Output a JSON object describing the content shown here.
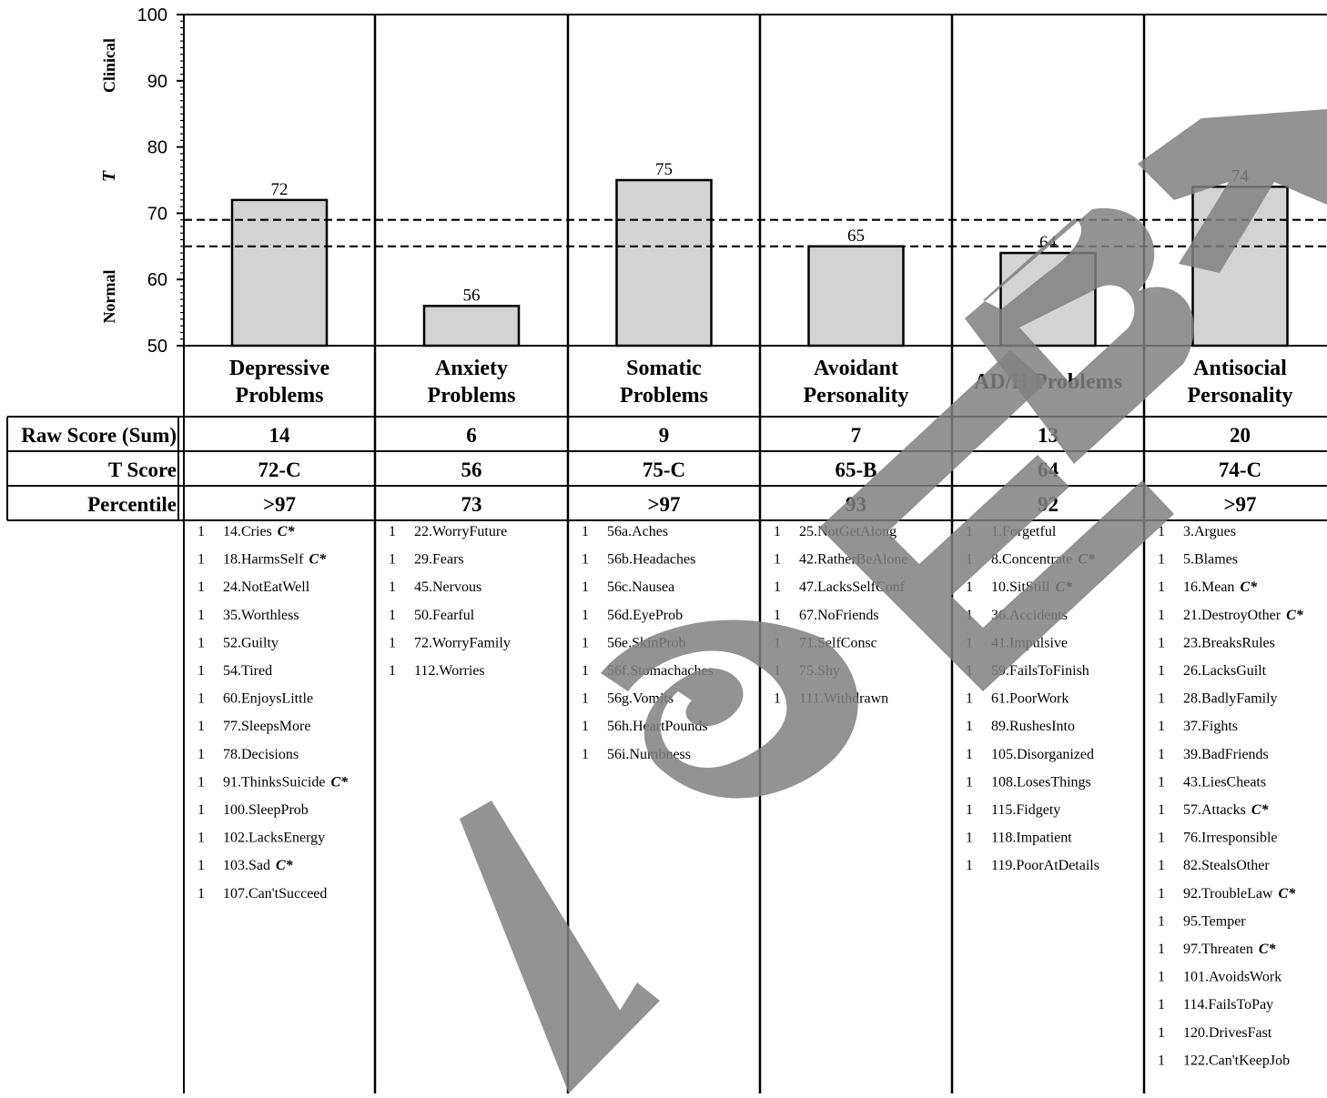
{
  "chart_data": {
    "type": "bar",
    "y_axis": {
      "ylim": [
        50,
        100
      ],
      "ticks": [
        50,
        60,
        70,
        80,
        90,
        100
      ],
      "label": "T",
      "zones": [
        "Clinical",
        "Normal"
      ]
    },
    "reference_lines": [
      65,
      69
    ],
    "categories": [
      [
        "Depressive",
        "Problems"
      ],
      [
        "Anxiety",
        "Problems"
      ],
      [
        "Somatic",
        "Problems"
      ],
      [
        "Avoidant",
        "Personality"
      ],
      [
        "AD/H Problems"
      ],
      [
        "Antisocial",
        "Personality"
      ]
    ],
    "values": [
      72,
      56,
      75,
      65,
      64,
      74
    ],
    "table": {
      "row_labels": [
        "Raw Score (Sum)",
        "T Score",
        "Percentile"
      ],
      "raw_scores": [
        "14",
        "6",
        "9",
        "7",
        "13",
        "20"
      ],
      "t_scores": [
        "72-C",
        "56",
        "75-C",
        "65-B",
        "64",
        "74-C"
      ],
      "percentiles": [
        ">97",
        "73",
        ">97",
        "93",
        "92",
        ">97"
      ]
    },
    "items": [
      [
        {
          "score": "1",
          "label": "14.Cries",
          "flag": "C*"
        },
        {
          "score": "1",
          "label": "18.HarmsSelf",
          "flag": "C*"
        },
        {
          "score": "1",
          "label": "24.NotEatWell",
          "flag": ""
        },
        {
          "score": "1",
          "label": "35.Worthless",
          "flag": ""
        },
        {
          "score": "1",
          "label": "52.Guilty",
          "flag": ""
        },
        {
          "score": "1",
          "label": "54.Tired",
          "flag": ""
        },
        {
          "score": "1",
          "label": "60.EnjoysLittle",
          "flag": ""
        },
        {
          "score": "1",
          "label": "77.SleepsMore",
          "flag": ""
        },
        {
          "score": "1",
          "label": "78.Decisions",
          "flag": ""
        },
        {
          "score": "1",
          "label": "91.ThinksSuicide",
          "flag": "C*"
        },
        {
          "score": "1",
          "label": "100.SleepProb",
          "flag": ""
        },
        {
          "score": "1",
          "label": "102.LacksEnergy",
          "flag": ""
        },
        {
          "score": "1",
          "label": "103.Sad",
          "flag": "C*"
        },
        {
          "score": "1",
          "label": "107.Can'tSucceed",
          "flag": ""
        }
      ],
      [
        {
          "score": "1",
          "label": "22.WorryFuture",
          "flag": ""
        },
        {
          "score": "1",
          "label": "29.Fears",
          "flag": ""
        },
        {
          "score": "1",
          "label": "45.Nervous",
          "flag": ""
        },
        {
          "score": "1",
          "label": "50.Fearful",
          "flag": ""
        },
        {
          "score": "1",
          "label": "72.WorryFamily",
          "flag": ""
        },
        {
          "score": "1",
          "label": "112.Worries",
          "flag": ""
        }
      ],
      [
        {
          "score": "1",
          "label": "56a.Aches",
          "flag": ""
        },
        {
          "score": "1",
          "label": "56b.Headaches",
          "flag": ""
        },
        {
          "score": "1",
          "label": "56c.Nausea",
          "flag": ""
        },
        {
          "score": "1",
          "label": "56d.EyeProb",
          "flag": ""
        },
        {
          "score": "1",
          "label": "56e.SkinProb",
          "flag": ""
        },
        {
          "score": "1",
          "label": "56f.Stomachaches",
          "flag": ""
        },
        {
          "score": "1",
          "label": "56g.Vomits",
          "flag": ""
        },
        {
          "score": "1",
          "label": "56h.HeartPounds",
          "flag": ""
        },
        {
          "score": "1",
          "label": "56i.Numbness",
          "flag": ""
        }
      ],
      [
        {
          "score": "1",
          "label": "25.NotGetAlong",
          "flag": ""
        },
        {
          "score": "1",
          "label": "42.RatherBeAlone",
          "flag": ""
        },
        {
          "score": "1",
          "label": "47.LacksSelfConf",
          "flag": ""
        },
        {
          "score": "1",
          "label": "67.NoFriends",
          "flag": ""
        },
        {
          "score": "1",
          "label": "71.SelfConsc",
          "flag": ""
        },
        {
          "score": "1",
          "label": "75.Shy",
          "flag": ""
        },
        {
          "score": "1",
          "label": "111.Withdrawn",
          "flag": ""
        }
      ],
      [
        {
          "score": "1",
          "label": "1.Forgetful",
          "flag": ""
        },
        {
          "score": "1",
          "label": "8.Concentrate",
          "flag": "C*"
        },
        {
          "score": "1",
          "label": "10.SitStill",
          "flag": "C*"
        },
        {
          "score": "1",
          "label": "36.Accidents",
          "flag": ""
        },
        {
          "score": "1",
          "label": "41.Impulsive",
          "flag": ""
        },
        {
          "score": "1",
          "label": "59.FailsToFinish",
          "flag": ""
        },
        {
          "score": "1",
          "label": "61.PoorWork",
          "flag": ""
        },
        {
          "score": "1",
          "label": "89.RushesInto",
          "flag": ""
        },
        {
          "score": "1",
          "label": "105.Disorganized",
          "flag": ""
        },
        {
          "score": "1",
          "label": "108.LosesThings",
          "flag": ""
        },
        {
          "score": "1",
          "label": "115.Fidgety",
          "flag": ""
        },
        {
          "score": "1",
          "label": "118.Impatient",
          "flag": ""
        },
        {
          "score": "1",
          "label": "119.PoorAtDetails",
          "flag": ""
        }
      ],
      [
        {
          "score": "1",
          "label": "3.Argues",
          "flag": ""
        },
        {
          "score": "1",
          "label": "5.Blames",
          "flag": ""
        },
        {
          "score": "1",
          "label": "16.Mean",
          "flag": "C*"
        },
        {
          "score": "1",
          "label": "21.DestroyOther",
          "flag": "C*"
        },
        {
          "score": "1",
          "label": "23.BreaksRules",
          "flag": ""
        },
        {
          "score": "1",
          "label": "26.LacksGuilt",
          "flag": ""
        },
        {
          "score": "1",
          "label": "28.BadlyFamily",
          "flag": ""
        },
        {
          "score": "1",
          "label": "37.Fights",
          "flag": ""
        },
        {
          "score": "1",
          "label": "39.BadFriends",
          "flag": ""
        },
        {
          "score": "1",
          "label": "43.LiesCheats",
          "flag": ""
        },
        {
          "score": "1",
          "label": "57.Attacks",
          "flag": "C*"
        },
        {
          "score": "1",
          "label": "76.Irresponsible",
          "flag": ""
        },
        {
          "score": "1",
          "label": "82.StealsOther",
          "flag": ""
        },
        {
          "score": "1",
          "label": "92.TroubleLaw",
          "flag": "C*"
        },
        {
          "score": "1",
          "label": "95.Temper",
          "flag": ""
        },
        {
          "score": "1",
          "label": "97.Threaten",
          "flag": "C*"
        },
        {
          "score": "1",
          "label": "101.AvoidsWork",
          "flag": ""
        },
        {
          "score": "1",
          "label": "114.FailsToPay",
          "flag": ""
        },
        {
          "score": "1",
          "label": "120.DrivesFast",
          "flag": ""
        },
        {
          "score": "1",
          "label": "122.Can'tKeepJob",
          "flag": ""
        }
      ]
    ],
    "watermark": "ASEBA",
    "colors": {
      "bar_fill": "#d3d3d3",
      "bar_stroke": "#000000",
      "watermark": "#808080"
    }
  }
}
